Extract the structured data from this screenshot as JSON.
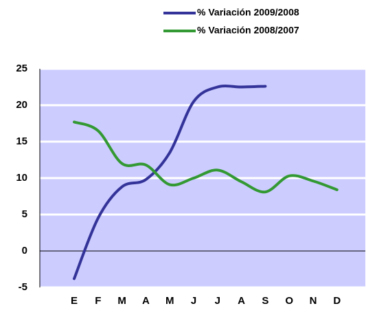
{
  "chart_data": {
    "type": "line",
    "categories": [
      "E",
      "F",
      "M",
      "A",
      "M",
      "J",
      "J",
      "A",
      "S",
      "O",
      "N",
      "D"
    ],
    "series": [
      {
        "name": "% Variación 2009/2008",
        "color": "#333399",
        "values": [
          -3.8,
          4.5,
          8.8,
          9.8,
          13.5,
          20.5,
          22.5,
          22.5,
          22.6,
          null,
          null,
          null
        ]
      },
      {
        "name": "% Variación 2008/2007",
        "color": "#339933",
        "values": [
          17.7,
          16.5,
          12.0,
          11.8,
          9.1,
          10.0,
          11.1,
          9.5,
          8.1,
          10.3,
          9.6,
          8.4
        ]
      }
    ],
    "ylim": [
      -5,
      25
    ],
    "yticks": [
      -5,
      0,
      5,
      10,
      15,
      20,
      25
    ],
    "grid": true,
    "legend": "top-right"
  }
}
